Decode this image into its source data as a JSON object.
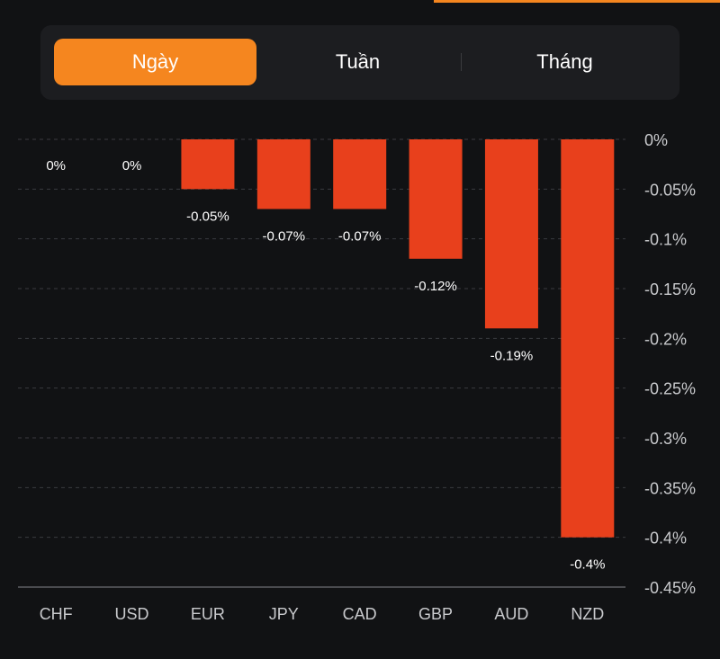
{
  "tabs": [
    {
      "label": "Ngày",
      "active": true
    },
    {
      "label": "Tuần",
      "active": false
    },
    {
      "label": "Tháng",
      "active": false
    }
  ],
  "colors": {
    "accent": "#f5861f",
    "bar": "#e8401c",
    "background": "#111214"
  },
  "chart_data": {
    "type": "bar",
    "title": "",
    "xlabel": "",
    "ylabel": "",
    "categories": [
      "CHF",
      "USD",
      "EUR",
      "JPY",
      "CAD",
      "GBP",
      "AUD",
      "NZD"
    ],
    "values": [
      0,
      0,
      -0.05,
      -0.07,
      -0.07,
      -0.12,
      -0.19,
      -0.4
    ],
    "data_labels": [
      "0%",
      "0%",
      "-0.05%",
      "-0.07%",
      "-0.07%",
      "-0.12%",
      "-0.19%",
      "-0.4%"
    ],
    "yticks": [
      0,
      -0.05,
      -0.1,
      -0.15,
      -0.2,
      -0.25,
      -0.3,
      -0.35,
      -0.4,
      -0.45
    ],
    "ytick_labels": [
      "0%",
      "-0.05%",
      "-0.1%",
      "-0.15%",
      "-0.2%",
      "-0.25%",
      "-0.3%",
      "-0.35%",
      "-0.4%",
      "-0.45%"
    ],
    "ylim": [
      -0.45,
      0
    ],
    "yaxis_position": "right",
    "grid": true,
    "legend": "none"
  }
}
